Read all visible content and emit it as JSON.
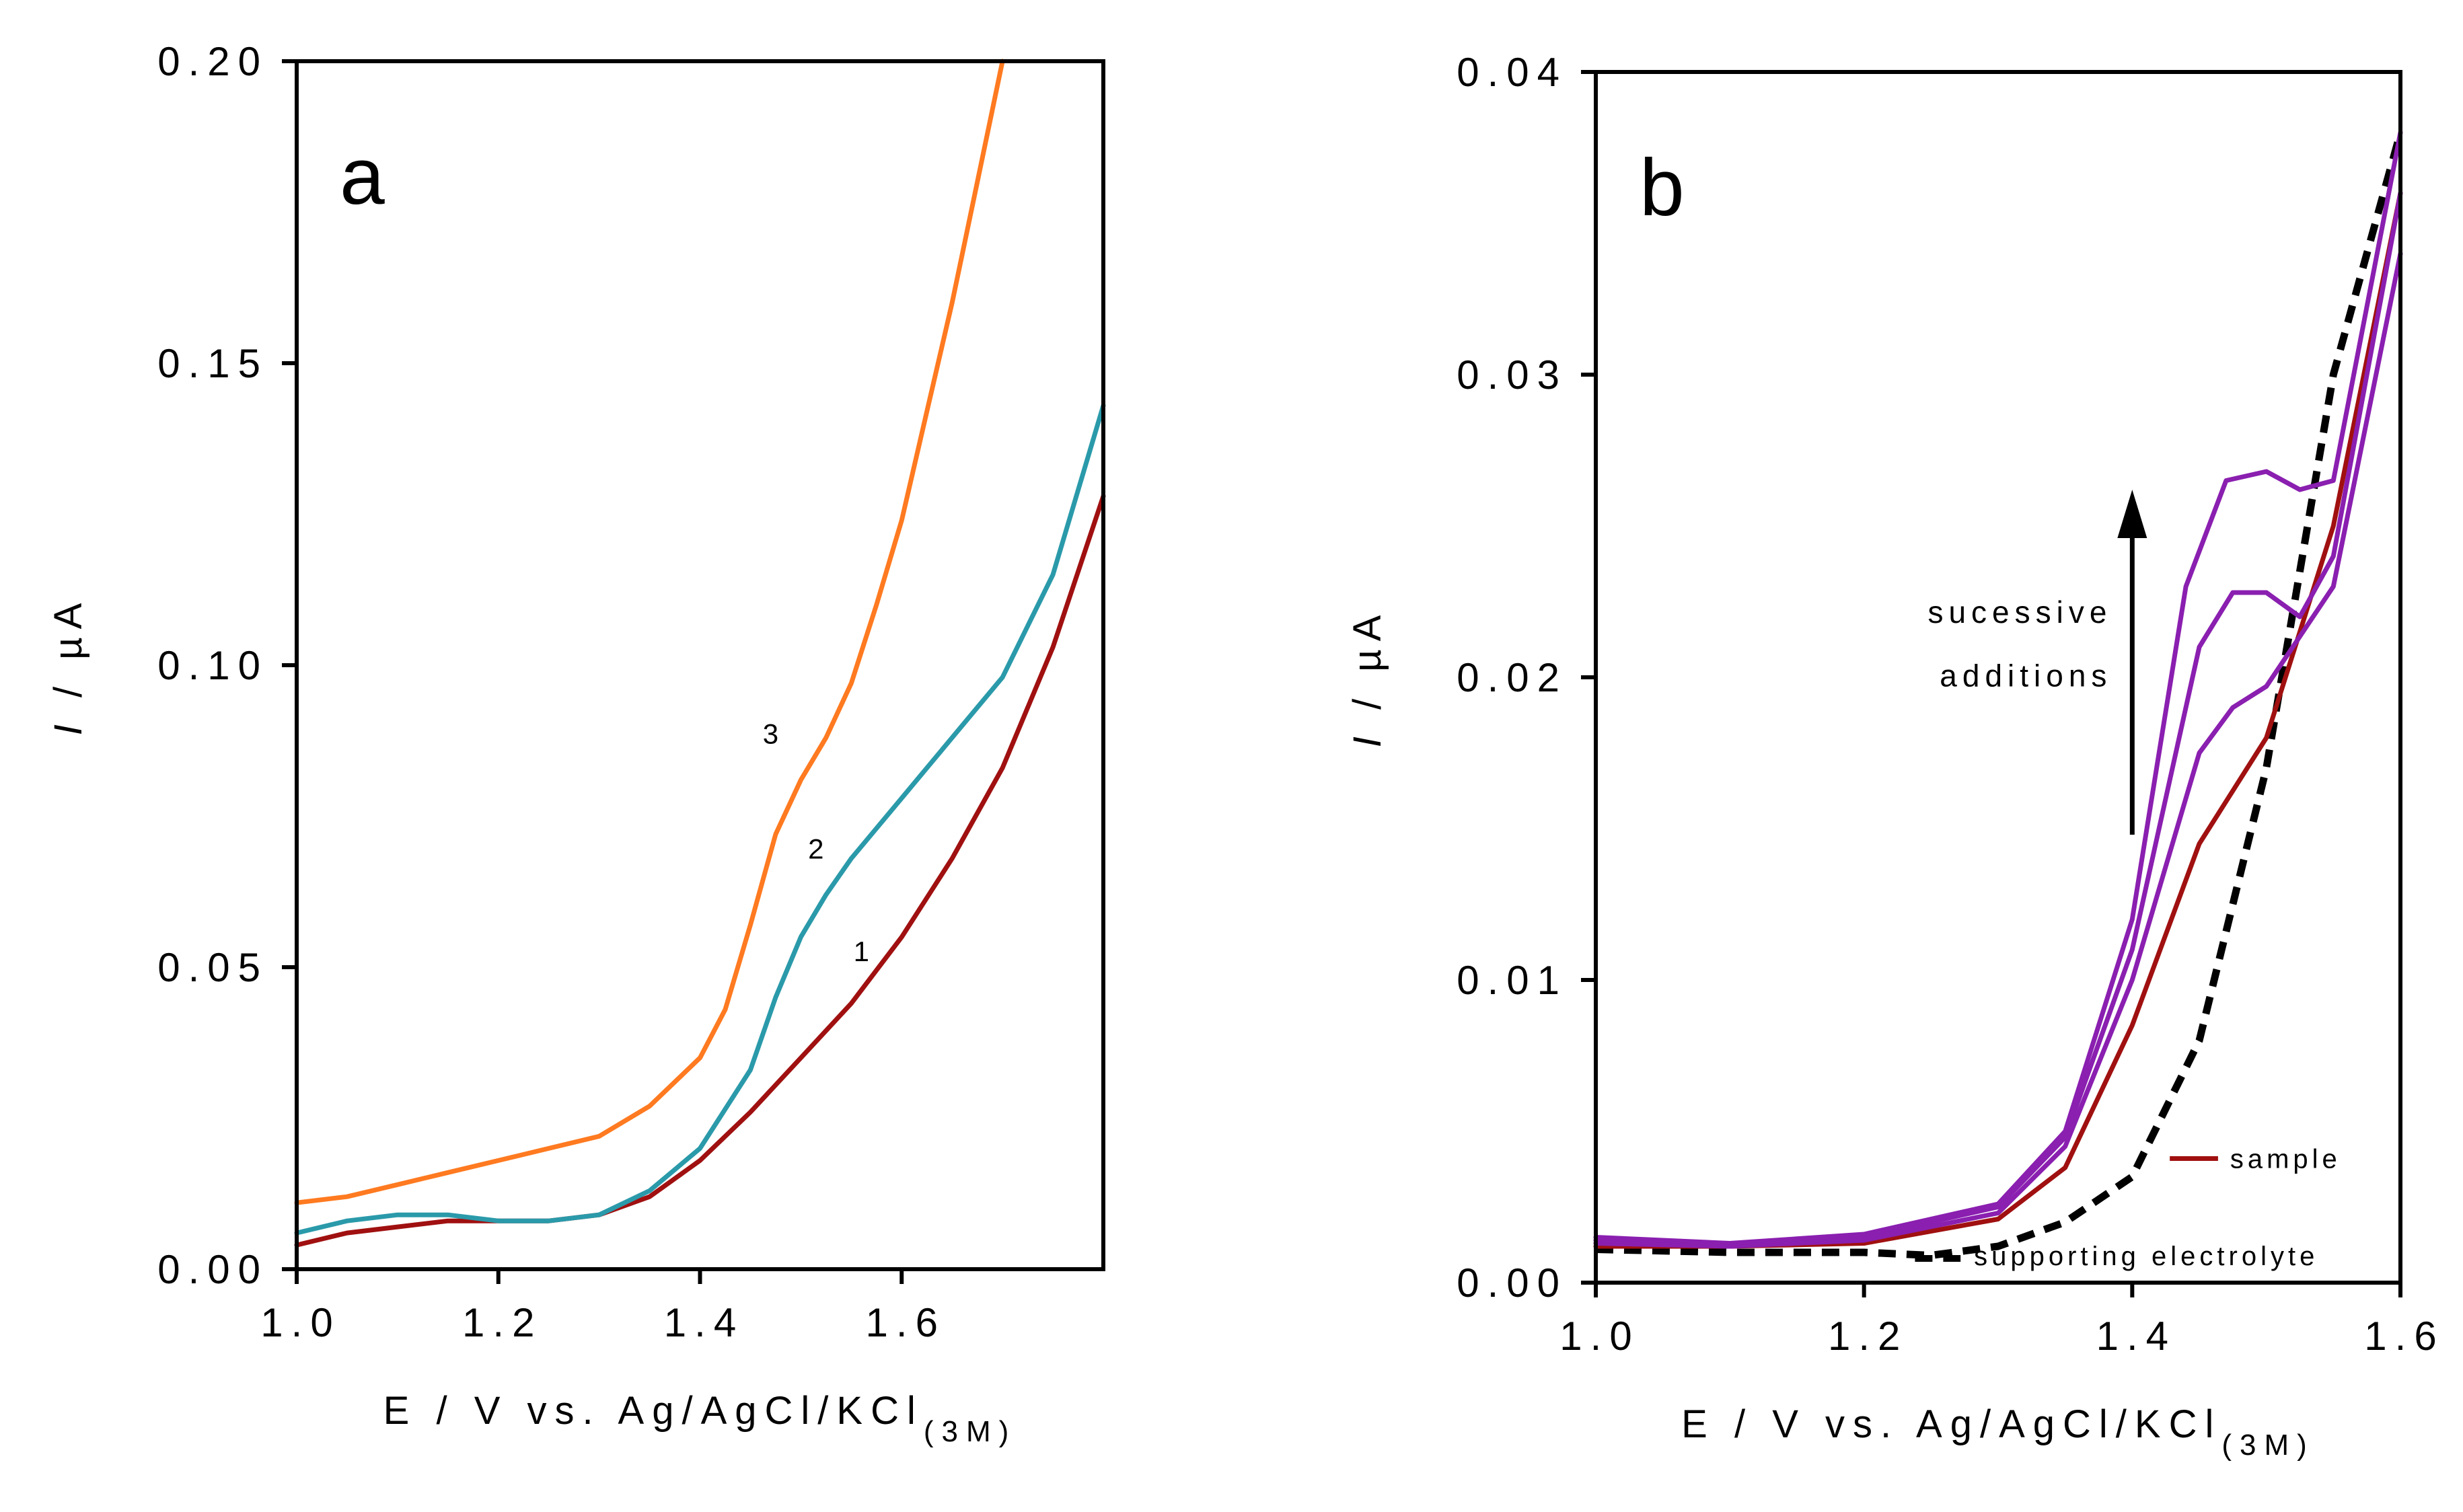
{
  "chart_data": [
    {
      "type": "line",
      "panel_label": "a",
      "xlabel": "E / V vs. Ag/AgCl/KCl",
      "xlabel_subscript": "(3M)",
      "ylabel_italic": "I",
      "ylabel_rest": " / µA",
      "xlim": [
        1.0,
        1.8
      ],
      "ylim": [
        0.0,
        0.2
      ],
      "xticks": [
        1.0,
        1.2,
        1.4,
        1.6
      ],
      "xtick_labels": [
        "1.0",
        "1.2",
        "1.4",
        "1.6"
      ],
      "yticks": [
        0.0,
        0.05,
        0.1,
        0.15,
        0.2
      ],
      "ytick_labels": [
        "0.00",
        "0.05",
        "0.10",
        "0.15",
        "0.20"
      ],
      "grid": false,
      "series": [
        {
          "label": "1",
          "color": "#A01010",
          "dashed": false,
          "x": [
            1.0,
            1.05,
            1.1,
            1.15,
            1.2,
            1.25,
            1.3,
            1.35,
            1.4,
            1.45,
            1.5,
            1.55,
            1.6,
            1.65,
            1.7,
            1.75,
            1.8
          ],
          "y": [
            0.004,
            0.006,
            0.007,
            0.008,
            0.008,
            0.008,
            0.009,
            0.012,
            0.018,
            0.026,
            0.035,
            0.044,
            0.055,
            0.068,
            0.083,
            0.103,
            0.128
          ]
        },
        {
          "label": "2",
          "color": "#2A9AAA",
          "dashed": false,
          "x": [
            1.0,
            1.05,
            1.1,
            1.15,
            1.2,
            1.25,
            1.3,
            1.35,
            1.4,
            1.45,
            1.475,
            1.5,
            1.525,
            1.55,
            1.6,
            1.65,
            1.7,
            1.75,
            1.8
          ],
          "y": [
            0.006,
            0.008,
            0.009,
            0.009,
            0.008,
            0.008,
            0.009,
            0.013,
            0.02,
            0.033,
            0.045,
            0.055,
            0.062,
            0.068,
            0.078,
            0.088,
            0.098,
            0.115,
            0.143
          ]
        },
        {
          "label": "3",
          "color": "#FF7A20",
          "dashed": false,
          "x": [
            1.0,
            1.05,
            1.1,
            1.15,
            1.2,
            1.25,
            1.3,
            1.35,
            1.4,
            1.425,
            1.45,
            1.475,
            1.5,
            1.525,
            1.55,
            1.575,
            1.6,
            1.625,
            1.65,
            1.675,
            1.7
          ],
          "y": [
            0.011,
            0.012,
            0.014,
            0.016,
            0.018,
            0.02,
            0.022,
            0.027,
            0.035,
            0.043,
            0.057,
            0.072,
            0.081,
            0.088,
            0.097,
            0.11,
            0.124,
            0.142,
            0.16,
            0.18,
            0.2
          ]
        }
      ]
    },
    {
      "type": "line",
      "panel_label": "b",
      "xlabel": "E / V vs. Ag/AgCl/KCl",
      "xlabel_subscript": "(3M)",
      "ylabel_italic": "I",
      "ylabel_rest": " / µA",
      "xlim": [
        1.0,
        1.6
      ],
      "ylim": [
        0.0,
        0.04
      ],
      "xticks": [
        1.0,
        1.2,
        1.4,
        1.6
      ],
      "xtick_labels": [
        "1.0",
        "1.2",
        "1.4",
        "1.6"
      ],
      "yticks": [
        0.0,
        0.01,
        0.02,
        0.03,
        0.04
      ],
      "ytick_labels": [
        "0.00",
        "0.01",
        "0.02",
        "0.03",
        "0.04"
      ],
      "grid": false,
      "annotation_lines": [
        "sucessive",
        "additions"
      ],
      "legend": [
        {
          "label": "sample",
          "color": "#A01010",
          "dashed": false
        },
        {
          "label": "supporting electrolyte",
          "color": "#000000",
          "dashed": true
        }
      ],
      "series": [
        {
          "name": "supporting electrolyte",
          "color": "#000000",
          "dashed": true,
          "x": [
            1.0,
            1.1,
            1.2,
            1.25,
            1.3,
            1.35,
            1.4,
            1.45,
            1.5,
            1.55,
            1.6
          ],
          "y": [
            0.0011,
            0.001,
            0.001,
            0.0009,
            0.0012,
            0.002,
            0.0035,
            0.008,
            0.017,
            0.03,
            0.038
          ]
        },
        {
          "name": "sample",
          "color": "#A01010",
          "dashed": false,
          "x": [
            1.0,
            1.1,
            1.2,
            1.3,
            1.35,
            1.4,
            1.45,
            1.5,
            1.55,
            1.6
          ],
          "y": [
            0.0012,
            0.0012,
            0.0013,
            0.0021,
            0.0038,
            0.0085,
            0.0145,
            0.018,
            0.025,
            0.036
          ]
        },
        {
          "color": "#8A1FB0",
          "dashed": false,
          "x": [
            1.0,
            1.1,
            1.2,
            1.3,
            1.35,
            1.4,
            1.45,
            1.475,
            1.5,
            1.55,
            1.6
          ],
          "y": [
            0.0013,
            0.0012,
            0.0014,
            0.0023,
            0.0045,
            0.01,
            0.0175,
            0.019,
            0.0197,
            0.023,
            0.034
          ]
        },
        {
          "color": "#8A1FB0",
          "dashed": false,
          "x": [
            1.0,
            1.1,
            1.2,
            1.3,
            1.35,
            1.4,
            1.45,
            1.475,
            1.5,
            1.525,
            1.55,
            1.6
          ],
          "y": [
            0.0014,
            0.0012,
            0.0015,
            0.0025,
            0.0048,
            0.011,
            0.021,
            0.0228,
            0.0228,
            0.022,
            0.024,
            0.036
          ]
        },
        {
          "color": "#8A1FB0",
          "dashed": false,
          "x": [
            1.0,
            1.1,
            1.2,
            1.3,
            1.35,
            1.4,
            1.44,
            1.47,
            1.5,
            1.525,
            1.55,
            1.6
          ],
          "y": [
            0.0015,
            0.0013,
            0.0016,
            0.0026,
            0.005,
            0.012,
            0.023,
            0.0265,
            0.0268,
            0.0262,
            0.0265,
            0.038
          ]
        }
      ]
    }
  ]
}
